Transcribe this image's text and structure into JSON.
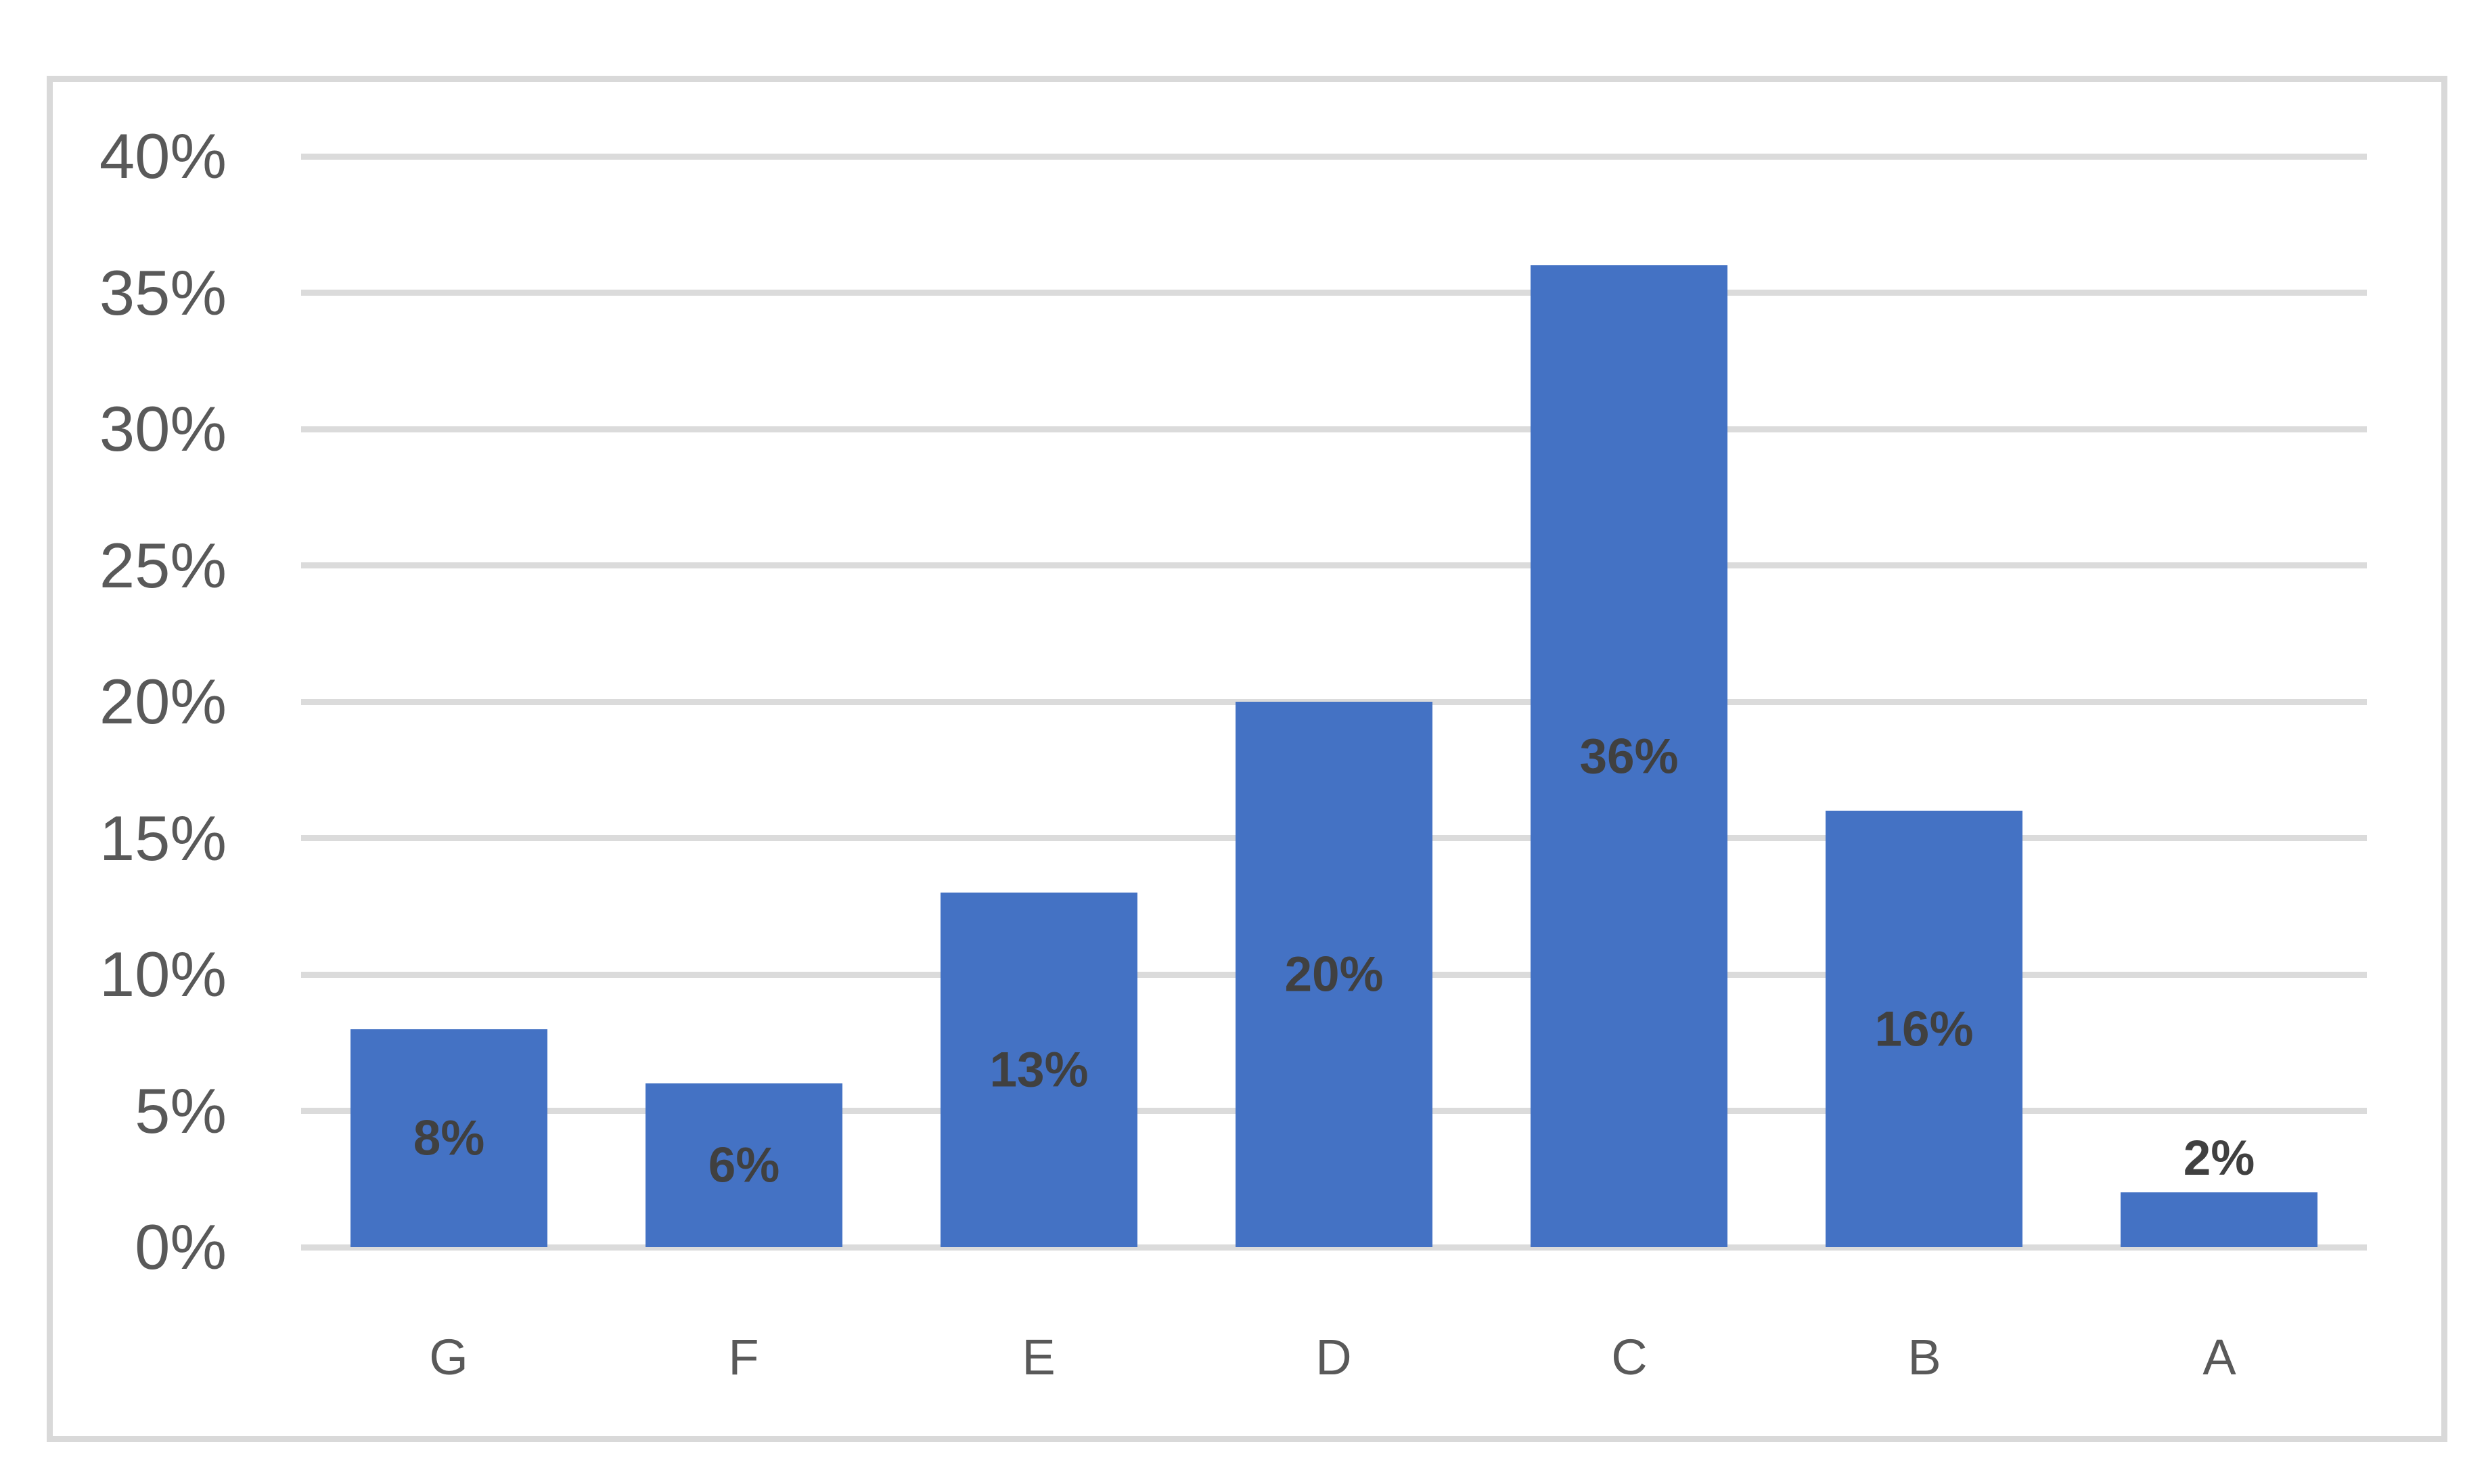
{
  "chart_data": {
    "type": "bar",
    "title": "",
    "xlabel": "",
    "ylabel": "",
    "categories": [
      "G",
      "F",
      "E",
      "D",
      "C",
      "B",
      "A"
    ],
    "values": [
      8,
      6,
      13,
      20,
      36,
      16,
      2
    ],
    "data_labels": [
      "8%",
      "6%",
      "13%",
      "20%",
      "36%",
      "16%",
      "2%"
    ],
    "y_tick_labels": [
      "0%",
      "5%",
      "10%",
      "15%",
      "20%",
      "25%",
      "30%",
      "35%",
      "40%"
    ],
    "ylim": [
      0,
      40
    ],
    "ytick_step": 5,
    "grid": true,
    "legend": false,
    "data_label_position": "center-inside, moves above bar when bar too short",
    "style": {
      "bar_color": "#4472C4",
      "data_label_color": "#404040",
      "axis_text_color": "#595959",
      "gridline_color": "#DBDBDB",
      "frame_border_color": "#D9D9D9",
      "background_color": "#FFFFFF"
    }
  }
}
